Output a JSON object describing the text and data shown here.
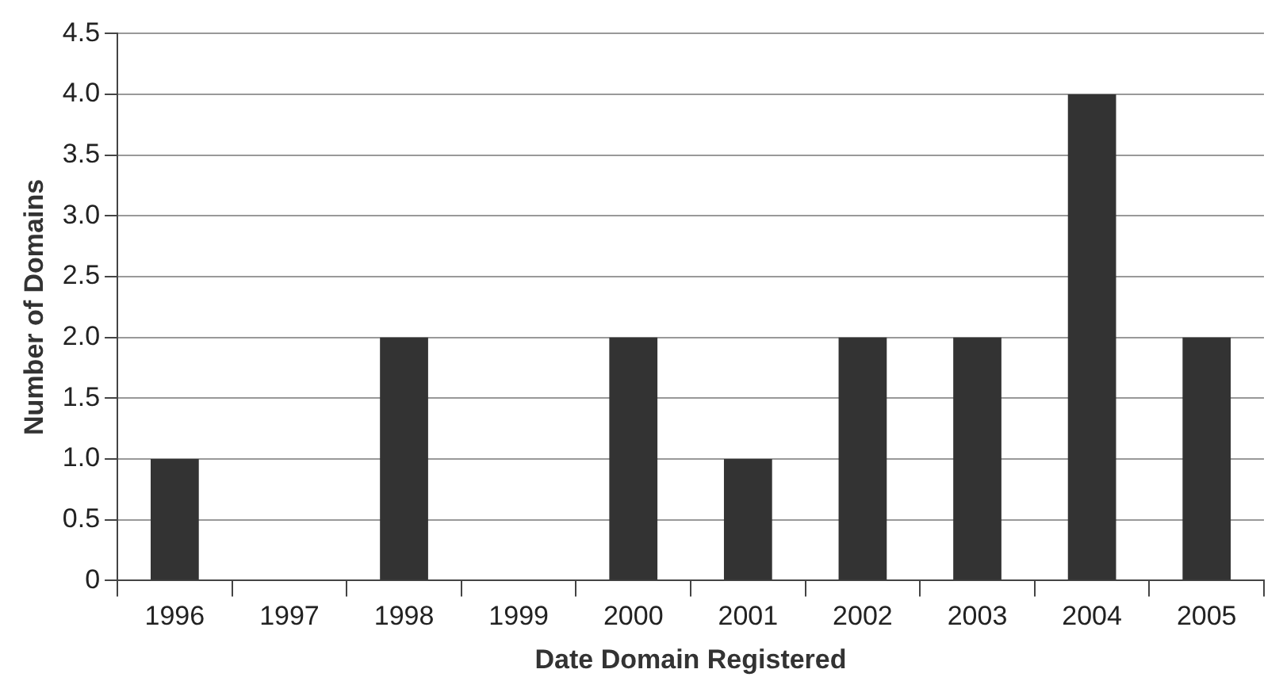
{
  "chart_data": {
    "type": "bar",
    "xlabel": "Date Domain Registered",
    "ylabel": "Number of Domains",
    "categories": [
      "1996",
      "1997",
      "1998",
      "1999",
      "2000",
      "2001",
      "2002",
      "2003",
      "2004",
      "2005"
    ],
    "values": [
      1,
      0,
      2,
      0,
      2,
      1,
      2,
      2,
      4,
      2
    ],
    "color": "#333333",
    "ylim": [
      0,
      4.5
    ],
    "yticks": [
      0,
      {
        "value": 0.5,
        "label": "0.5"
      },
      {
        "value": 1,
        "label": "1.0"
      },
      {
        "value": 1.5,
        "label": "1.5"
      },
      {
        "value": 2,
        "label": "2.0"
      },
      {
        "value": 2.5,
        "label": "2.5"
      },
      {
        "value": 3,
        "label": "3.0"
      },
      {
        "value": 3.5,
        "label": "3.5"
      },
      {
        "value": 4,
        "label": "4.0"
      },
      {
        "value": 4.5,
        "label": "4.5"
      }
    ],
    "grid": "y"
  }
}
